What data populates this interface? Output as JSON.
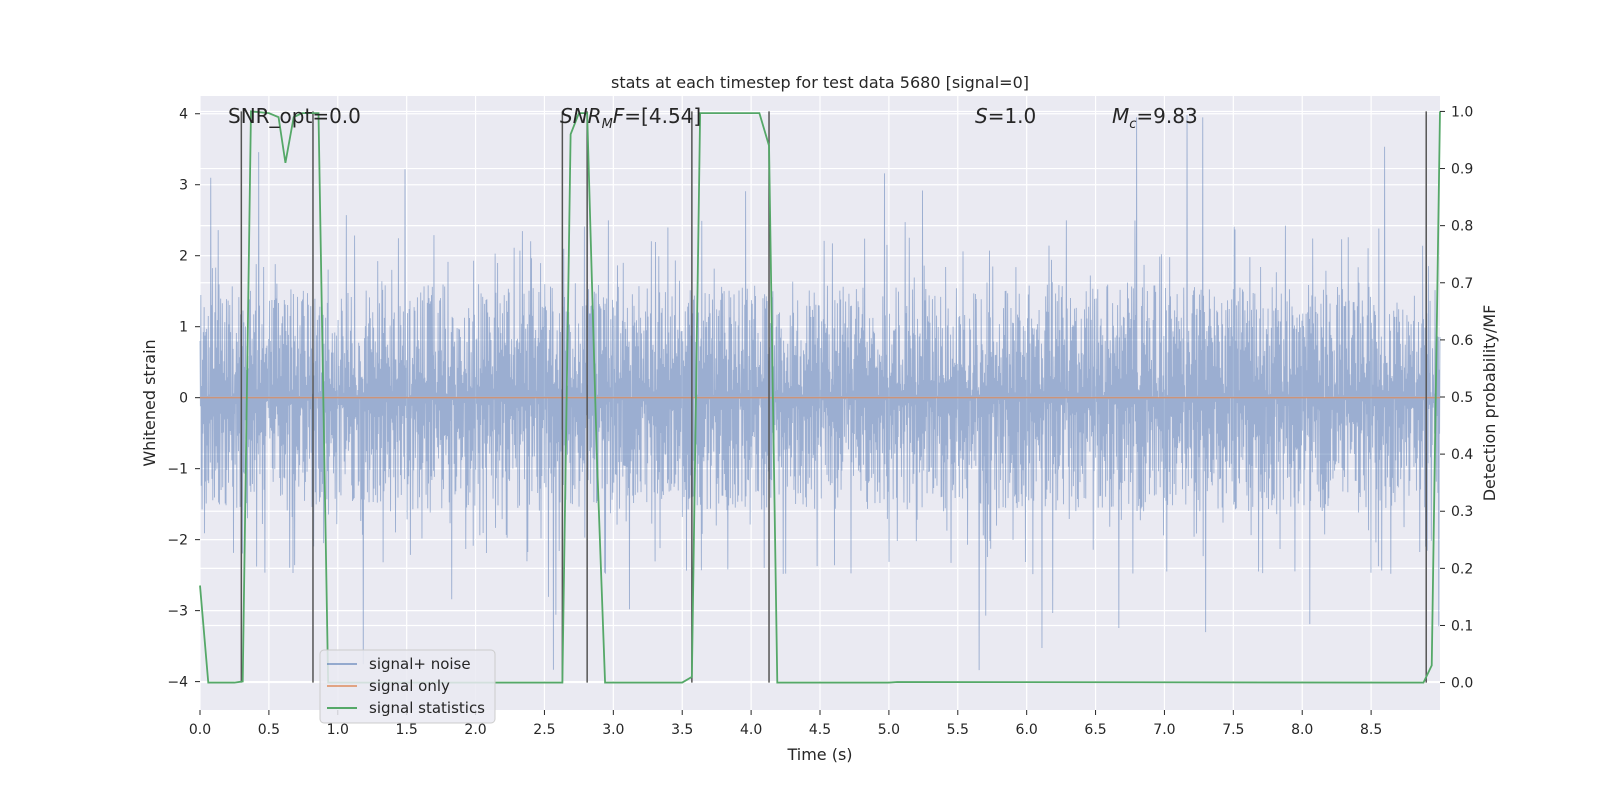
{
  "chart_data": {
    "type": "line",
    "title": "stats at each timestep for test data 5680 [signal=0]",
    "xlabel": "Time (s)",
    "ylabel": "Whitened strain",
    "y2label": "Detection probability/MF",
    "xlim": [
      0,
      9.0
    ],
    "ylim": [
      -4.4,
      4.25
    ],
    "y2lim": [
      -0.048,
      1.027
    ],
    "xticks": [
      0.0,
      0.5,
      1.0,
      1.5,
      2.0,
      2.5,
      3.0,
      3.5,
      4.0,
      4.5,
      5.0,
      5.5,
      6.0,
      6.5,
      7.0,
      7.5,
      8.0,
      8.5
    ],
    "xtick_labels": [
      "0.0",
      "0.5",
      "1.0",
      "1.5",
      "2.0",
      "2.5",
      "3.0",
      "3.5",
      "4.0",
      "4.5",
      "5.0",
      "5.5",
      "6.0",
      "6.5",
      "7.0",
      "7.5",
      "8.0",
      "8.5"
    ],
    "yticks": [
      4,
      3,
      2,
      1,
      0,
      -1,
      -2,
      -3,
      -4
    ],
    "ytick_labels": [
      "4",
      "3",
      "2",
      "1",
      "0",
      "−1",
      "−2",
      "−3",
      "−4"
    ],
    "y2ticks": [
      1.0,
      0.9,
      0.8,
      0.7,
      0.6,
      0.5,
      0.4,
      0.3,
      0.2,
      0.1,
      0.0
    ],
    "y2tick_labels": [
      "1.0",
      "0.9",
      "0.8",
      "0.7",
      "0.6",
      "0.5",
      "0.4",
      "0.3",
      "0.2",
      "0.1",
      "0.0"
    ],
    "grid": true,
    "legend_position": "lower-left",
    "annotations": [
      {
        "text": "SNR_opt=0.0",
        "x": 0.2,
        "y": 4.0
      },
      {
        "text": "SNR_MF=[4.54]",
        "x": 2.6,
        "y": 4.0
      },
      {
        "text": "S=1.0",
        "x": 5.6,
        "y": 4.0
      },
      {
        "text": "M_c=9.83",
        "x": 6.6,
        "y": 4.0
      }
    ],
    "vertical_lines_x": [
      0.3,
      0.82,
      2.63,
      2.81,
      3.57,
      4.13,
      8.9
    ],
    "series": [
      {
        "name": "signal+ noise",
        "color": "#4c72b0",
        "axis": "left",
        "style": "dense-noise",
        "x_range": [
          0,
          9.0
        ],
        "core_amplitude": 1.6,
        "peak_amplitude": 4.0
      },
      {
        "name": "signal only",
        "color": "#dd8452",
        "axis": "left",
        "x": [
          0,
          9.0
        ],
        "y": [
          0,
          0
        ]
      },
      {
        "name": "signal statistics",
        "color": "#55a868",
        "axis": "right",
        "x": [
          0.0,
          0.06,
          0.1,
          0.25,
          0.31,
          0.37,
          0.5,
          0.57,
          0.62,
          0.68,
          0.74,
          0.86,
          0.93,
          2.63,
          2.69,
          2.75,
          2.81,
          2.88,
          2.94,
          3.5,
          3.57,
          3.63,
          4.06,
          4.13,
          4.19,
          4.25,
          5.0,
          5.06,
          8.88,
          8.94,
          9.0
        ],
        "y": [
          0.17,
          0.0,
          0.0,
          0.0,
          0.002,
          1.0,
          0.997,
          0.99,
          0.91,
          0.99,
          0.997,
          0.997,
          0.0,
          0.0,
          0.96,
          0.997,
          0.997,
          0.4,
          0.0,
          0.0,
          0.01,
          0.997,
          0.997,
          0.94,
          0.0,
          0.0,
          0.0,
          0.001,
          0.0,
          0.03,
          1.0
        ]
      }
    ]
  }
}
